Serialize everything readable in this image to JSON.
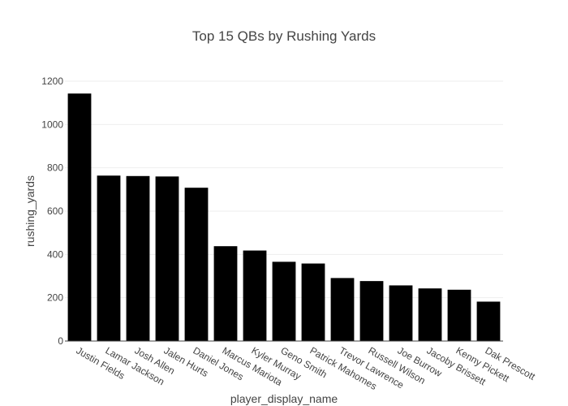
{
  "chart_data": {
    "type": "bar",
    "title": "Top 15 QBs by Rushing Yards",
    "xlabel": "player_display_name",
    "ylabel": "rushing_yards",
    "ylim": [
      0,
      1200
    ],
    "yticks": [
      0,
      200,
      400,
      600,
      800,
      1000,
      1200
    ],
    "grid": true,
    "bar_color": "#000000",
    "categories": [
      "Justin Fields",
      "Lamar Jackson",
      "Josh Allen",
      "Jalen Hurts",
      "Daniel Jones",
      "Marcus Mariota",
      "Kyler Murray",
      "Geno Smith",
      "Patrick Mahomes",
      "Trevor Lawrence",
      "Russell Wilson",
      "Joe Burrow",
      "Jacoby Brissett",
      "Kenny Pickett",
      "Dak Prescott"
    ],
    "values": [
      1143,
      764,
      762,
      760,
      708,
      438,
      418,
      366,
      358,
      291,
      277,
      257,
      243,
      237,
      182
    ]
  }
}
